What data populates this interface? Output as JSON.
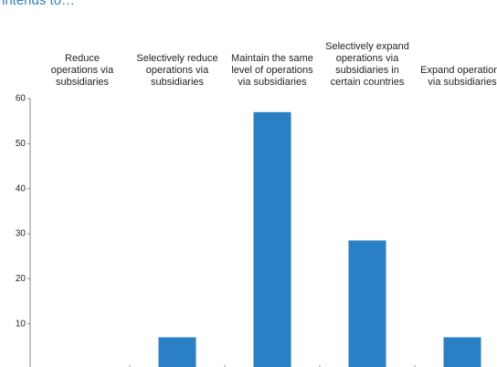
{
  "chart_data": {
    "type": "bar",
    "title": "intends to…",
    "categories": [
      "Reduce operations via subsidiaries",
      "Selectively reduce operations via subsidiaries",
      "Maintain the same level of operations via subsidiaries",
      "Selectively expand operations via subsidiaries in certain countries",
      "Expand operations via subsidiaries"
    ],
    "values": [
      0,
      7,
      57,
      28.5,
      7
    ],
    "color": "#2a80c4",
    "ylim": [
      0,
      60
    ],
    "yticks": [
      10,
      20,
      30,
      40,
      50,
      60
    ],
    "grid": false
  }
}
